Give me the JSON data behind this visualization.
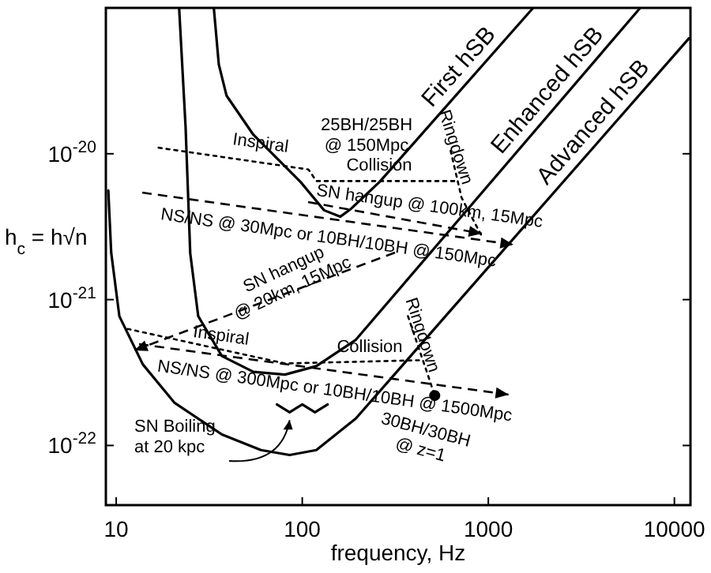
{
  "chart_data": {
    "type": "line",
    "xlabel": "frequency, Hz",
    "ylabel": "h$_{c}$ = h√n",
    "log": "xy",
    "grid": false,
    "xlim": [
      8.8,
      12200
    ],
    "xticks": [
      10,
      100,
      1000,
      10000
    ],
    "ylim": [
      3.9e-23,
      1e-19
    ],
    "yticks": [
      {
        "value": 1e-20,
        "label": "10$^{-20}$"
      },
      {
        "value": 1e-21,
        "label": "10$^{-21}$"
      },
      {
        "value": 1e-22,
        "label": "10$^{-22}$"
      }
    ],
    "series": [
      {
        "name": "First hSB",
        "color": "#000000",
        "line_style": "solid",
        "x": [
          33.5,
          35.6,
          39.2,
          54.6,
          98,
          131,
          160,
          183,
          260,
          1730
        ],
        "values": [
          9.9e-20,
          4.1e-20,
          2.5e-20,
          1.35e-20,
          6.4e-21,
          4.1e-21,
          3.7e-21,
          4.2e-21,
          6.4e-21,
          9.9e-20
        ]
      },
      {
        "name": "Enhanced hSB",
        "color": "#000000",
        "line_style": "solid",
        "x": [
          21.8,
          23.6,
          25,
          27.6,
          37,
          54.6,
          80.7,
          119,
          194,
          6510
        ],
        "values": [
          9.9e-20,
          1.53e-20,
          2.08e-21,
          7.7e-22,
          4.1e-22,
          3.2e-22,
          3.06e-22,
          3.5e-22,
          5.3e-22,
          9.9e-20
        ]
      },
      {
        "name": "Advanced hSB",
        "color": "#000000",
        "line_style": "solid",
        "x": [
          9.07,
          9.4,
          10.4,
          13.9,
          20.6,
          37,
          60,
          85.5,
          119,
          194,
          12000
        ],
        "values": [
          5.6e-21,
          2.1e-21,
          7.7e-22,
          3.6e-22,
          1.96e-22,
          1.19e-22,
          9.3e-23,
          8.6e-23,
          9.3e-23,
          1.53e-22,
          6.2e-20
        ]
      },
      {
        "color": "#000000",
        "line_style": "dotted",
        "x": [
          16.9,
          108,
          119,
          664
        ],
        "values": [
          1.1e-20,
          7.8e-21,
          6.5e-21,
          6.5e-21
        ]
      },
      {
        "color": "#000000",
        "line_style": "dotted",
        "x": [
          627,
          718,
          925
        ],
        "values": [
          1.05e-20,
          5e-21,
          2.7e-21
        ]
      },
      {
        "color": "#000000",
        "line_style": "dotted",
        "x": [
          11.5,
          80.7,
          424
        ],
        "values": [
          6.3e-22,
          3.65e-22,
          3.84e-22
        ]
      },
      {
        "color": "#000000",
        "line_style": "dotted",
        "x": [
          370,
          467,
          515
        ],
        "values": [
          7.7e-22,
          3.2e-22,
          2.2e-22
        ]
      },
      {
        "color": "#000000",
        "line_style": "solid",
        "x": [
          73,
          85.5,
          100,
          117,
          137
        ],
        "values": [
          1.91e-22,
          1.69e-22,
          1.91e-22,
          1.69e-22,
          1.91e-22
        ]
      },
      {
        "type": "scatter",
        "color": "#000000",
        "marker": "circle",
        "x": [
          515
        ],
        "values": [
          2.2e-22
        ]
      }
    ],
    "annotations": [
      "25BH/25BH\n@ 150Mpc",
      "Inspiral",
      "Collision",
      "Ringdown",
      "SN hangup @ 100km, 15Mpc",
      "NS/NS @ 30Mpc or 10BH/10BH @ 150Mpc",
      "SN hangup\n@ 20km, 15Mpc",
      "Inspiral",
      "Collision",
      "Ringdown",
      "NS/NS @ 300Mpc or 10BH/10BH @ 1500Mpc",
      "30BH/30BH\n@ z=1",
      "SN Boiling\nat 20 kpc"
    ]
  }
}
